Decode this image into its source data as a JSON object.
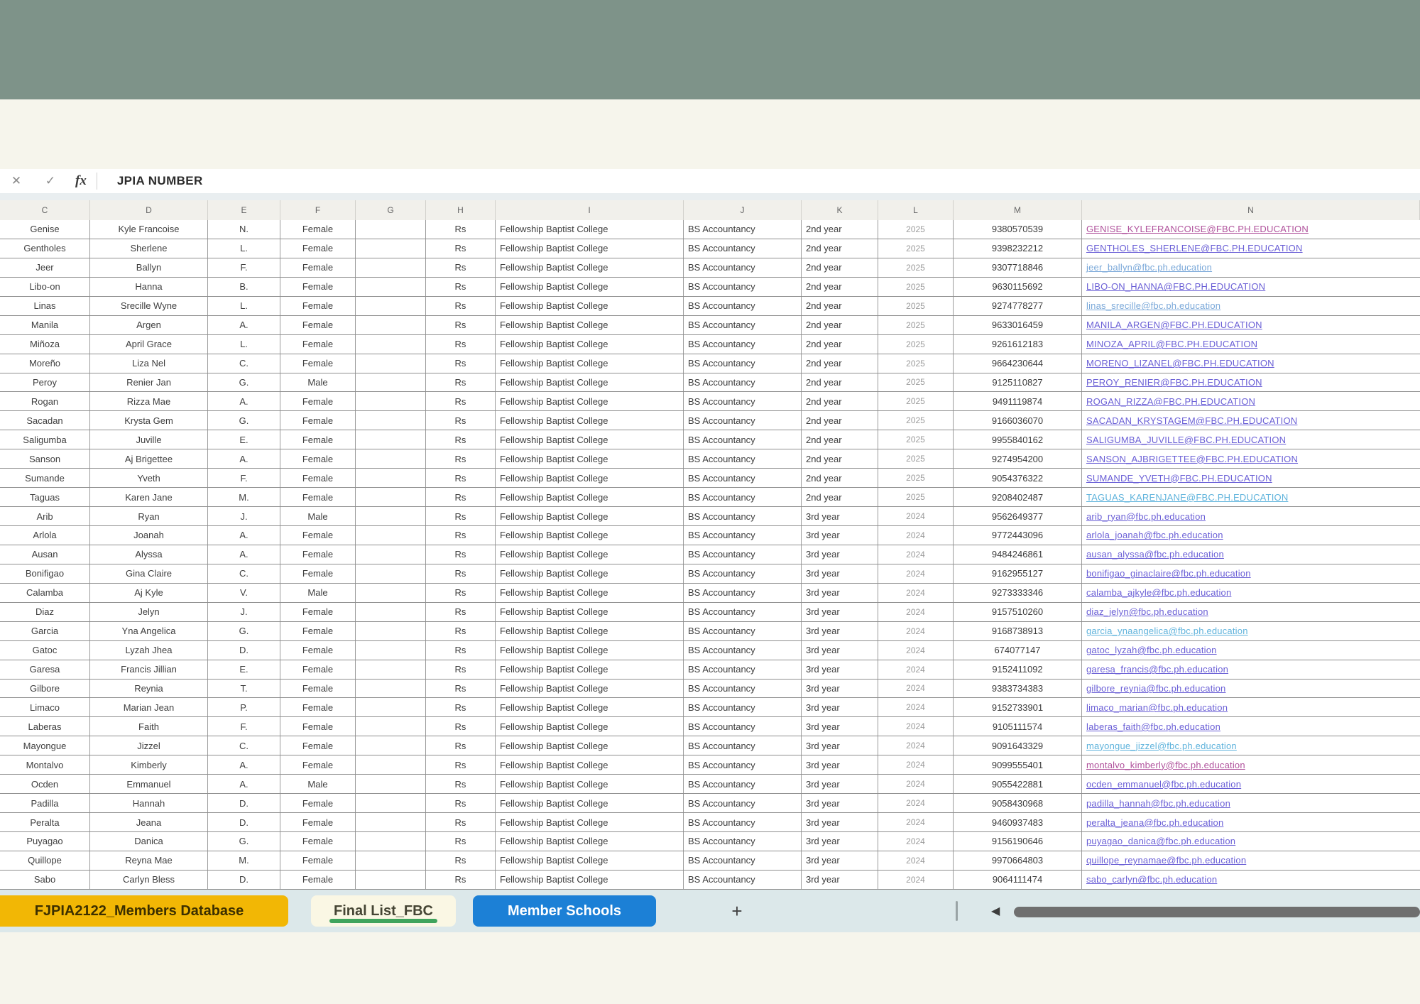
{
  "colors": {
    "top_band": "#7e9389",
    "cream": "#f6f5ec",
    "tab_bar_bg": "#dce8ea",
    "tab_gold": "#f2b705",
    "tab_active_bg": "#faf7e4",
    "tab_active_underline": "#3fa45c",
    "tab_blue": "#1c80d6",
    "link_violet": "#6a5fd6",
    "link_magenta": "#b0529c",
    "link_lightblue": "#7aa8d9",
    "link_cyan": "#5fb3dc"
  },
  "formula_bar": {
    "cancel_icon": "✕",
    "enter_icon": "✓",
    "fx_label": "fx",
    "value": "JPIA NUMBER"
  },
  "column_letters": [
    "C",
    "D",
    "E",
    "F",
    "G",
    "H",
    "I",
    "J",
    "K",
    "L",
    "M",
    "N"
  ],
  "grid": {
    "rows": [
      {
        "c": "Genise",
        "d": "Kyle Francoise",
        "e": "N.",
        "f": "Female",
        "g": "",
        "h": "Rs",
        "i": "Fellowship Baptist College",
        "j": "BS Accountancy",
        "k": "2nd year",
        "l": "2025",
        "m": "9380570539",
        "n": "GENISE_KYLEFRANCOISE@FBC.PH.EDUCATION",
        "nc": "magenta"
      },
      {
        "c": "Gentholes",
        "d": "Sherlene",
        "e": "L.",
        "f": "Female",
        "g": "",
        "h": "Rs",
        "i": "Fellowship Baptist College",
        "j": "BS Accountancy",
        "k": "2nd year",
        "l": "2025",
        "m": "9398232212",
        "n": "GENTHOLES_SHERLENE@FBC.PH.EDUCATION",
        "nc": "violet"
      },
      {
        "c": "Jeer",
        "d": "Ballyn",
        "e": "F.",
        "f": "Female",
        "g": "",
        "h": "Rs",
        "i": "Fellowship Baptist College",
        "j": "BS Accountancy",
        "k": "2nd year",
        "l": "2025",
        "m": "9307718846",
        "n": "jeer_ballyn@fbc.ph.education",
        "nc": "lightblue"
      },
      {
        "c": "Libo-on",
        "d": "Hanna",
        "e": "B.",
        "f": "Female",
        "g": "",
        "h": "Rs",
        "i": "Fellowship Baptist College",
        "j": "BS Accountancy",
        "k": "2nd year",
        "l": "2025",
        "m": "9630115692",
        "n": "LIBO-ON_HANNA@FBC.PH.EDUCATION",
        "nc": "violet"
      },
      {
        "c": "Linas",
        "d": "Srecille Wyne",
        "e": "L.",
        "f": "Female",
        "g": "",
        "h": "Rs",
        "i": "Fellowship Baptist College",
        "j": "BS Accountancy",
        "k": "2nd year",
        "l": "2025",
        "m": "9274778277",
        "n": "linas_srecille@fbc.ph.education",
        "nc": "lightblue"
      },
      {
        "c": "Manila",
        "d": "Argen",
        "e": "A.",
        "f": "Female",
        "g": "",
        "h": "Rs",
        "i": "Fellowship Baptist College",
        "j": "BS Accountancy",
        "k": "2nd year",
        "l": "2025",
        "m": "9633016459",
        "n": "MANILA_ARGEN@FBC.PH.EDUCATION",
        "nc": "violet"
      },
      {
        "c": "Miñoza",
        "d": "April Grace",
        "e": "L.",
        "f": "Female",
        "g": "",
        "h": "Rs",
        "i": "Fellowship Baptist College",
        "j": "BS Accountancy",
        "k": "2nd year",
        "l": "2025",
        "m": "9261612183",
        "n": "MINOZA_APRIL@FBC.PH.EDUCATION",
        "nc": "violet"
      },
      {
        "c": "Moreño",
        "d": "Liza Nel",
        "e": "C.",
        "f": "Female",
        "g": "",
        "h": "Rs",
        "i": "Fellowship Baptist College",
        "j": "BS Accountancy",
        "k": "2nd year",
        "l": "2025",
        "m": "9664230644",
        "n": "MORENO_LIZANEL@FBC.PH.EDUCATION",
        "nc": "violet"
      },
      {
        "c": "Peroy",
        "d": "Renier Jan",
        "e": "G.",
        "f": "Male",
        "g": "",
        "h": "Rs",
        "i": "Fellowship Baptist College",
        "j": "BS Accountancy",
        "k": "2nd year",
        "l": "2025",
        "m": "9125110827",
        "n": "PEROY_RENIER@FBC.PH.EDUCATION",
        "nc": "violet"
      },
      {
        "c": "Rogan",
        "d": "Rizza Mae",
        "e": "A.",
        "f": "Female",
        "g": "",
        "h": "Rs",
        "i": "Fellowship Baptist College",
        "j": "BS Accountancy",
        "k": "2nd year",
        "l": "2025",
        "m": "9491119874",
        "n": "ROGAN_RIZZA@FBC.PH.EDUCATION",
        "nc": "violet"
      },
      {
        "c": "Sacadan",
        "d": "Krysta Gem",
        "e": "G.",
        "f": "Female",
        "g": "",
        "h": "Rs",
        "i": "Fellowship Baptist College",
        "j": "BS Accountancy",
        "k": "2nd year",
        "l": "2025",
        "m": "9166036070",
        "n": "SACADAN_KRYSTAGEM@FBC.PH.EDUCATION",
        "nc": "violet"
      },
      {
        "c": "Saligumba",
        "d": "Juville",
        "e": "E.",
        "f": "Female",
        "g": "",
        "h": "Rs",
        "i": "Fellowship Baptist College",
        "j": "BS Accountancy",
        "k": "2nd year",
        "l": "2025",
        "m": "9955840162",
        "n": "SALIGUMBA_JUVILLE@FBC.PH.EDUCATION",
        "nc": "violet"
      },
      {
        "c": "Sanson",
        "d": "Aj Brigettee",
        "e": "A.",
        "f": "Female",
        "g": "",
        "h": "Rs",
        "i": "Fellowship Baptist College",
        "j": "BS Accountancy",
        "k": "2nd year",
        "l": "2025",
        "m": "9274954200",
        "n": "SANSON_AJBRIGETTEE@FBC.PH.EDUCATION",
        "nc": "violet"
      },
      {
        "c": "Sumande",
        "d": "Yveth",
        "e": "F.",
        "f": "Female",
        "g": "",
        "h": "Rs",
        "i": "Fellowship Baptist College",
        "j": "BS Accountancy",
        "k": "2nd year",
        "l": "2025",
        "m": "9054376322",
        "n": "SUMANDE_YVETH@FBC.PH.EDUCATION",
        "nc": "violet"
      },
      {
        "c": "Taguas",
        "d": "Karen Jane",
        "e": "M.",
        "f": "Female",
        "g": "",
        "h": "Rs",
        "i": "Fellowship Baptist College",
        "j": "BS Accountancy",
        "k": "2nd year",
        "l": "2025",
        "m": "9208402487",
        "n": "TAGUAS_KARENJANE@FBC.PH.EDUCATION",
        "nc": "cyan"
      },
      {
        "c": "Arib",
        "d": "Ryan",
        "e": "J.",
        "f": "Male",
        "g": "",
        "h": "Rs",
        "i": "Fellowship Baptist College",
        "j": "BS Accountancy",
        "k": "3rd year",
        "l": "2024",
        "m": "9562649377",
        "n": "arib_ryan@fbc.ph.education",
        "nc": "violet"
      },
      {
        "c": "Arlola",
        "d": "Joanah",
        "e": "A.",
        "f": "Female",
        "g": "",
        "h": "Rs",
        "i": "Fellowship Baptist College",
        "j": "BS Accountancy",
        "k": "3rd year",
        "l": "2024",
        "m": "9772443096",
        "n": "arlola_joanah@fbc.ph.education",
        "nc": "violet"
      },
      {
        "c": "Ausan",
        "d": "Alyssa",
        "e": "A.",
        "f": "Female",
        "g": "",
        "h": "Rs",
        "i": "Fellowship Baptist College",
        "j": "BS Accountancy",
        "k": "3rd year",
        "l": "2024",
        "m": "9484246861",
        "n": "ausan_alyssa@fbc.ph.education",
        "nc": "violet"
      },
      {
        "c": "Bonifigao",
        "d": "Gina Claire",
        "e": "C.",
        "f": "Female",
        "g": "",
        "h": "Rs",
        "i": "Fellowship Baptist College",
        "j": "BS Accountancy",
        "k": "3rd year",
        "l": "2024",
        "m": "9162955127",
        "n": "bonifigao_ginaclaire@fbc.ph.education",
        "nc": "violet"
      },
      {
        "c": "Calamba",
        "d": "Aj Kyle",
        "e": "V.",
        "f": "Male",
        "g": "",
        "h": "Rs",
        "i": "Fellowship Baptist College",
        "j": "BS Accountancy",
        "k": "3rd year",
        "l": "2024",
        "m": "9273333346",
        "n": "calamba_ajkyle@fbc.ph.education",
        "nc": "violet"
      },
      {
        "c": "Diaz",
        "d": "Jelyn",
        "e": "J.",
        "f": "Female",
        "g": "",
        "h": "Rs",
        "i": "Fellowship Baptist College",
        "j": "BS Accountancy",
        "k": "3rd year",
        "l": "2024",
        "m": "9157510260",
        "n": "diaz_jelyn@fbc.ph.education",
        "nc": "violet"
      },
      {
        "c": "Garcia",
        "d": "Yna Angelica",
        "e": "G.",
        "f": "Female",
        "g": "",
        "h": "Rs",
        "i": "Fellowship Baptist College",
        "j": "BS Accountancy",
        "k": "3rd year",
        "l": "2024",
        "m": "9168738913",
        "n": "garcia_ynaangelica@fbc.ph.education",
        "nc": "cyan"
      },
      {
        "c": "Gatoc",
        "d": "Lyzah Jhea",
        "e": "D.",
        "f": "Female",
        "g": "",
        "h": "Rs",
        "i": "Fellowship Baptist College",
        "j": "BS Accountancy",
        "k": "3rd year",
        "l": "2024",
        "m": "674077147",
        "n": "gatoc_lyzah@fbc.ph.education",
        "nc": "violet"
      },
      {
        "c": "Garesa",
        "d": "Francis Jillian",
        "e": "E.",
        "f": "Female",
        "g": "",
        "h": "Rs",
        "i": "Fellowship Baptist College",
        "j": "BS Accountancy",
        "k": "3rd year",
        "l": "2024",
        "m": "9152411092",
        "n": "garesa_francis@fbc.ph.education",
        "nc": "violet"
      },
      {
        "c": "Gilbore",
        "d": "Reynia",
        "e": "T.",
        "f": "Female",
        "g": "",
        "h": "Rs",
        "i": "Fellowship Baptist College",
        "j": "BS Accountancy",
        "k": "3rd year",
        "l": "2024",
        "m": "9383734383",
        "n": "gilbore_reynia@fbc.ph.education",
        "nc": "violet"
      },
      {
        "c": "Limaco",
        "d": "Marian Jean",
        "e": "P.",
        "f": "Female",
        "g": "",
        "h": "Rs",
        "i": "Fellowship Baptist College",
        "j": "BS Accountancy",
        "k": "3rd year",
        "l": "2024",
        "m": "9152733901",
        "n": "limaco_marian@fbc.ph.education",
        "nc": "violet"
      },
      {
        "c": "Laberas",
        "d": "Faith",
        "e": "F.",
        "f": "Female",
        "g": "",
        "h": "Rs",
        "i": "Fellowship Baptist College",
        "j": "BS Accountancy",
        "k": "3rd year",
        "l": "2024",
        "m": "9105111574",
        "n": "laberas_faith@fbc.ph.education",
        "nc": "violet"
      },
      {
        "c": "Mayongue",
        "d": "Jizzel",
        "e": "C.",
        "f": "Female",
        "g": "",
        "h": "Rs",
        "i": "Fellowship Baptist College",
        "j": "BS Accountancy",
        "k": "3rd year",
        "l": "2024",
        "m": "9091643329",
        "n": "mayongue_jizzel@fbc.ph.education",
        "nc": "cyan"
      },
      {
        "c": "Montalvo",
        "d": "Kimberly",
        "e": "A.",
        "f": "Female",
        "g": "",
        "h": "Rs",
        "i": "Fellowship Baptist College",
        "j": "BS Accountancy",
        "k": "3rd year",
        "l": "2024",
        "m": "9099555401",
        "n": "montalvo_kimberly@fbc.ph.education",
        "nc": "magenta"
      },
      {
        "c": "Ocden",
        "d": "Emmanuel",
        "e": "A.",
        "f": "Male",
        "g": "",
        "h": "Rs",
        "i": "Fellowship Baptist College",
        "j": "BS Accountancy",
        "k": "3rd year",
        "l": "2024",
        "m": "9055422881",
        "n": "ocden_emmanuel@fbc.ph.education",
        "nc": "violet"
      },
      {
        "c": "Padilla",
        "d": "Hannah",
        "e": "D.",
        "f": "Female",
        "g": "",
        "h": "Rs",
        "i": "Fellowship Baptist College",
        "j": "BS Accountancy",
        "k": "3rd year",
        "l": "2024",
        "m": "9058430968",
        "n": "padilla_hannah@fbc.ph.education",
        "nc": "violet"
      },
      {
        "c": "Peralta",
        "d": "Jeana",
        "e": "D.",
        "f": "Female",
        "g": "",
        "h": "Rs",
        "i": "Fellowship Baptist College",
        "j": "BS Accountancy",
        "k": "3rd year",
        "l": "2024",
        "m": "9460937483",
        "n": "peralta_jeana@fbc.ph.education",
        "nc": "violet"
      },
      {
        "c": "Puyagao",
        "d": "Danica",
        "e": "G.",
        "f": "Female",
        "g": "",
        "h": "Rs",
        "i": "Fellowship Baptist College",
        "j": "BS Accountancy",
        "k": "3rd year",
        "l": "2024",
        "m": "9156190646",
        "n": "puyagao_danica@fbc.ph.education",
        "nc": "violet"
      },
      {
        "c": "Quillope",
        "d": "Reyna Mae",
        "e": "M.",
        "f": "Female",
        "g": "",
        "h": "Rs",
        "i": "Fellowship Baptist College",
        "j": "BS Accountancy",
        "k": "3rd year",
        "l": "2024",
        "m": "9970664803",
        "n": "quillope_reynamae@fbc.ph.education",
        "nc": "violet"
      },
      {
        "c": "Sabo",
        "d": "Carlyn Bless",
        "e": "D.",
        "f": "Female",
        "g": "",
        "h": "Rs",
        "i": "Fellowship Baptist College",
        "j": "BS Accountancy",
        "k": "3rd year",
        "l": "2024",
        "m": "9064111474",
        "n": "sabo_carlyn@fbc.ph.education",
        "nc": "violet"
      }
    ]
  },
  "sheet_tabs": {
    "tab1_label": "FJPIA2122_Members Database",
    "tab2_label": "Final List_FBC",
    "tab3_label": "Member Schools",
    "add_sheet_label": "+",
    "scroll_left_icon": "◀"
  }
}
